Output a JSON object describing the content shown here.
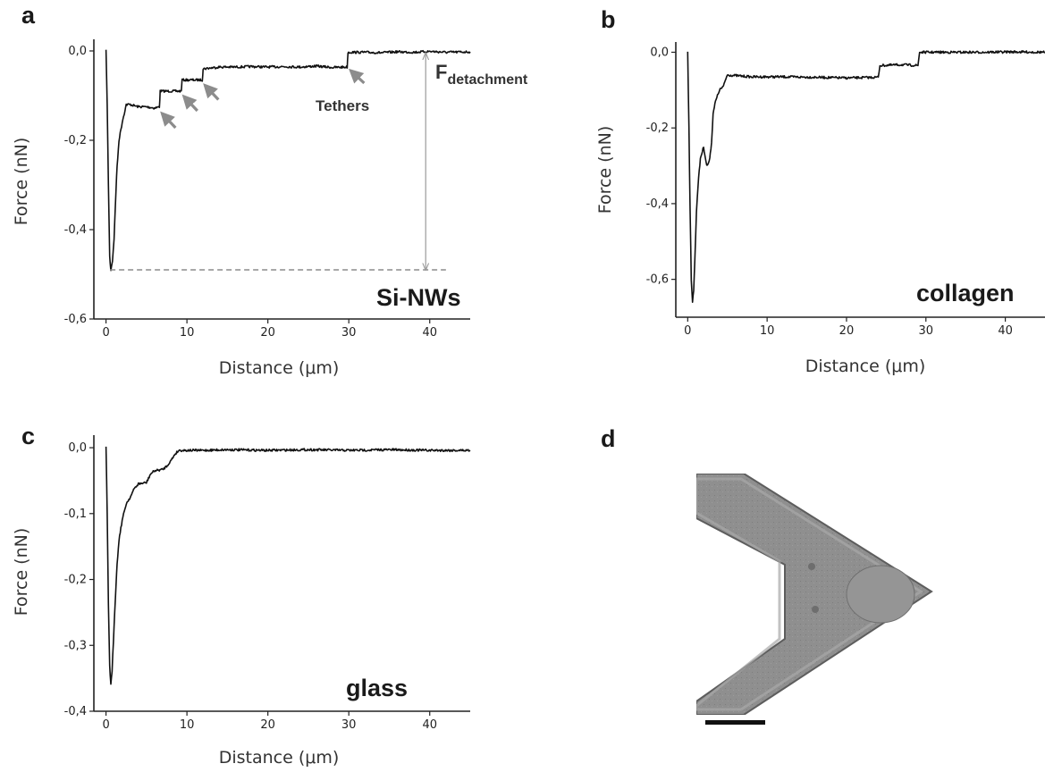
{
  "panels": {
    "a": {
      "letter": "a",
      "sample": "Si-NWs"
    },
    "b": {
      "letter": "b",
      "sample": "collagen"
    },
    "c": {
      "letter": "c",
      "sample": "glass"
    },
    "d": {
      "letter": "d"
    }
  },
  "annotations": {
    "tethers": "Tethers",
    "fdetachment_main": "F",
    "fdetachment_sub": "detachment"
  },
  "colors": {
    "trace": "#111111",
    "arrow": "#8c8c8c",
    "dashed": "#8c8c8c",
    "cantilever": "#8f8f8f",
    "cantilever_edge": "#6a6a6a"
  },
  "chart_data": [
    {
      "id": "a",
      "type": "line",
      "xlabel": "Distance (μm)",
      "ylabel": "Force (nN)",
      "xlim": [
        -1.5,
        45
      ],
      "ylim": [
        -0.6,
        0.02
      ],
      "xticks": [
        0,
        10,
        20,
        30,
        40
      ],
      "yticks": [
        0.0,
        -0.2,
        -0.4,
        -0.6
      ],
      "ytick_labels": [
        "0,0",
        "-0,2",
        "-0,4",
        "-0,6"
      ],
      "series": [
        {
          "x": [
            0,
            0.15,
            0.3,
            0.45,
            0.6,
            0.8,
            1.0,
            1.3,
            1.6,
            2.0,
            2.5,
            3,
            4,
            5,
            6,
            6.6,
            6.7,
            8,
            9.3,
            9.4,
            11,
            11.9,
            12.0,
            14,
            16,
            18,
            20,
            22,
            24,
            26,
            28,
            29.8,
            29.9,
            32,
            34,
            36,
            38,
            40,
            42,
            45
          ],
          "y": [
            0.0,
            -0.12,
            -0.3,
            -0.46,
            -0.49,
            -0.47,
            -0.42,
            -0.28,
            -0.2,
            -0.16,
            -0.12,
            -0.12,
            -0.125,
            -0.125,
            -0.128,
            -0.125,
            -0.09,
            -0.09,
            -0.09,
            -0.065,
            -0.065,
            -0.065,
            -0.04,
            -0.036,
            -0.036,
            -0.035,
            -0.036,
            -0.035,
            -0.036,
            -0.034,
            -0.037,
            -0.036,
            -0.003,
            -0.003,
            -0.004,
            -0.002,
            -0.003,
            -0.001,
            -0.003,
            -0.002
          ]
        }
      ],
      "detachment_level": -0.49,
      "tether_arrow_x": [
        6.6,
        9.3,
        11.9,
        29.8
      ]
    },
    {
      "id": "b",
      "type": "line",
      "xlabel": "Distance (μm)",
      "ylabel": "Force (nN)",
      "xlim": [
        -1.5,
        45
      ],
      "ylim": [
        -0.7,
        0.02
      ],
      "xticks": [
        0,
        10,
        20,
        30,
        40
      ],
      "yticks": [
        0.0,
        -0.2,
        -0.4,
        -0.6
      ],
      "ytick_labels": [
        "0,0",
        "-0,2",
        "-0,4",
        "-0,6"
      ],
      "series": [
        {
          "x": [
            0,
            0.15,
            0.3,
            0.45,
            0.6,
            0.75,
            0.9,
            1.1,
            1.3,
            1.6,
            2.0,
            2.4,
            2.7,
            3.0,
            3.2,
            3.5,
            4.0,
            4.5,
            4.8,
            5.0,
            8,
            12,
            16,
            20,
            24,
            24.2,
            27,
            29.0,
            29.2,
            33,
            37,
            41,
            45
          ],
          "y": [
            0.0,
            -0.2,
            -0.42,
            -0.6,
            -0.66,
            -0.63,
            -0.55,
            -0.42,
            -0.35,
            -0.28,
            -0.25,
            -0.3,
            -0.29,
            -0.24,
            -0.16,
            -0.13,
            -0.1,
            -0.09,
            -0.07,
            -0.06,
            -0.065,
            -0.065,
            -0.066,
            -0.068,
            -0.066,
            -0.035,
            -0.033,
            -0.035,
            0.0,
            0.0,
            0.0,
            0.001,
            0.0
          ]
        }
      ]
    },
    {
      "id": "c",
      "type": "line",
      "xlabel": "Distance (μm)",
      "ylabel": "Force (nN)",
      "xlim": [
        -1.5,
        45
      ],
      "ylim": [
        -0.4,
        0.015
      ],
      "xticks": [
        0,
        10,
        20,
        30,
        40
      ],
      "yticks": [
        0.0,
        -0.1,
        -0.2,
        -0.3,
        -0.4
      ],
      "ytick_labels": [
        "0,0",
        "-0,1",
        "-0,2",
        "-0,3",
        "-0,4"
      ],
      "series": [
        {
          "x": [
            0,
            0.15,
            0.3,
            0.45,
            0.6,
            0.75,
            1.0,
            1.3,
            1.6,
            2.0,
            2.5,
            3,
            3.5,
            4,
            5,
            5.5,
            6,
            7,
            7.5,
            8,
            8.5,
            9,
            12,
            15,
            20,
            25,
            30,
            35,
            40,
            45
          ],
          "y": [
            0.0,
            -0.1,
            -0.24,
            -0.33,
            -0.36,
            -0.34,
            -0.27,
            -0.19,
            -0.14,
            -0.11,
            -0.085,
            -0.075,
            -0.062,
            -0.055,
            -0.053,
            -0.04,
            -0.035,
            -0.033,
            -0.028,
            -0.02,
            -0.01,
            -0.004,
            -0.004,
            -0.003,
            -0.004,
            -0.003,
            -0.004,
            -0.003,
            -0.004,
            -0.004
          ]
        }
      ]
    }
  ]
}
